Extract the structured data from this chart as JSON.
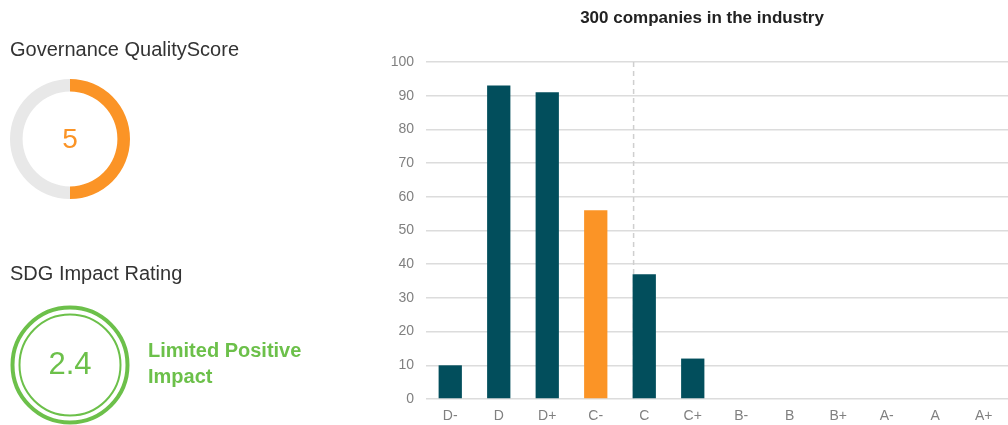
{
  "chart_data": [
    {
      "type": "donut",
      "title": "Governance QualityScore",
      "categories": [
        null,
        null
      ],
      "values": [
        50,
        50
      ],
      "colors": [
        "#fb9426",
        "#e8e8e8"
      ],
      "annotations": [
        "5"
      ]
    },
    {
      "type": "other",
      "title": "SDG Impact Rating",
      "color": "#6cc04a",
      "annotations": [
        "2.4",
        "Limited Positive Impact"
      ]
    },
    {
      "type": "bar",
      "title": "300 companies in the industry",
      "categories": [
        "D-",
        "D",
        "D+",
        "C-",
        "C",
        "C+",
        "B-",
        "B",
        "B+",
        "A-",
        "A",
        "A+"
      ],
      "values": [
        10,
        93,
        91,
        56,
        37,
        12,
        0,
        0,
        0,
        0,
        0,
        0
      ],
      "colors": [
        "#024e5c",
        "#024e5c",
        "#024e5c",
        "#fb9426",
        "#024e5c",
        "#024e5c",
        "#024e5c",
        "#024e5c",
        "#024e5c",
        "#024e5c",
        "#024e5c",
        "#024e5c"
      ],
      "ylim": [
        0,
        100
      ],
      "yticks": [
        0,
        10,
        20,
        30,
        40,
        50,
        60,
        70,
        80,
        90,
        100
      ],
      "grid": "y",
      "ref_lines": [
        {
          "axis": "x",
          "value": "C",
          "color": "#cfcfcf",
          "line_style": "dashed"
        }
      ]
    }
  ]
}
